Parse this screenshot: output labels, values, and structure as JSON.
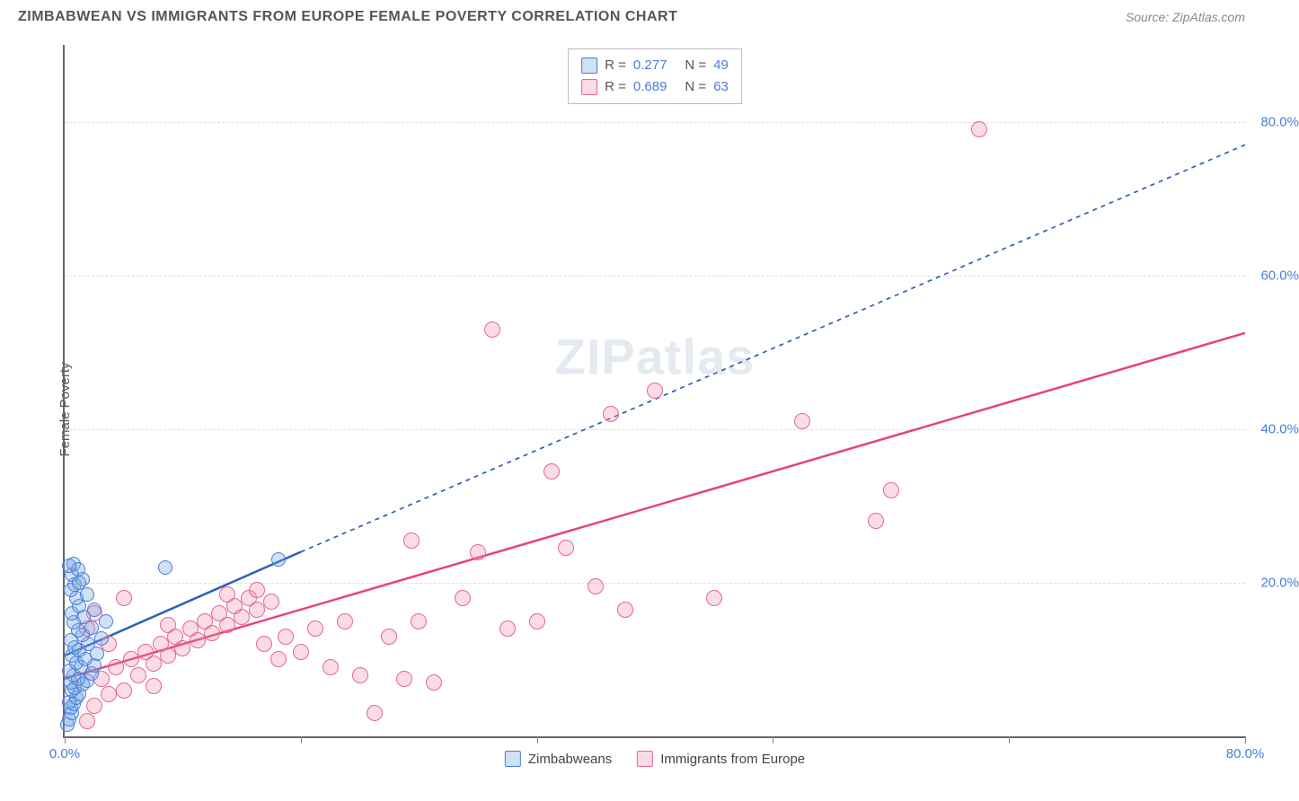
{
  "header": {
    "title": "ZIMBABWEAN VS IMMIGRANTS FROM EUROPE FEMALE POVERTY CORRELATION CHART",
    "source": "Source: ZipAtlas.com"
  },
  "watermark": {
    "bold": "ZIP",
    "light": "atlas"
  },
  "chart": {
    "type": "scatter-with-regression",
    "ylabel": "Female Poverty",
    "xlim": [
      0,
      80
    ],
    "ylim": [
      0,
      90
    ],
    "xtick_positions": [
      0,
      16,
      32,
      48,
      64,
      80
    ],
    "xtick_labels": {
      "0": "0.0%",
      "80": "80.0%"
    },
    "ygrid_positions": [
      20,
      40,
      60,
      80
    ],
    "ytick_labels": {
      "20": "20.0%",
      "40": "40.0%",
      "60": "60.0%",
      "80": "80.0%"
    },
    "background_color": "#ffffff",
    "grid_color": "#dddddd",
    "axis_color": "#666666",
    "tick_label_color": "#4a7dd6",
    "series": {
      "zimbabweans": {
        "label": "Zimbabweans",
        "marker_fill": "rgba(120, 170, 230, 0.35)",
        "marker_stroke": "#4a7dd6",
        "marker_radius": 8,
        "line_color": "#2d5fb8",
        "line_width": 2.5,
        "line_dash_tail": "5,5",
        "R": "0.277",
        "N": "49",
        "regression": {
          "x1": 0,
          "y1": 10.5,
          "x2_solid": 16,
          "y2_solid": 24,
          "x2": 80,
          "y2": 77
        },
        "points": [
          [
            0.2,
            1.5
          ],
          [
            0.3,
            2.2
          ],
          [
            0.5,
            3.0
          ],
          [
            0.4,
            3.8
          ],
          [
            0.6,
            4.2
          ],
          [
            0.3,
            4.5
          ],
          [
            0.8,
            5.0
          ],
          [
            1.0,
            5.5
          ],
          [
            0.5,
            6.0
          ],
          [
            0.7,
            6.3
          ],
          [
            1.2,
            6.8
          ],
          [
            0.4,
            7.0
          ],
          [
            1.5,
            7.2
          ],
          [
            0.9,
            7.5
          ],
          [
            0.6,
            8.0
          ],
          [
            1.8,
            8.2
          ],
          [
            0.3,
            8.5
          ],
          [
            1.1,
            9.0
          ],
          [
            2.0,
            9.2
          ],
          [
            0.8,
            9.6
          ],
          [
            1.4,
            10.0
          ],
          [
            0.5,
            10.5
          ],
          [
            2.2,
            10.8
          ],
          [
            1.0,
            11.2
          ],
          [
            0.7,
            11.6
          ],
          [
            1.6,
            12.0
          ],
          [
            0.4,
            12.5
          ],
          [
            2.5,
            12.8
          ],
          [
            1.2,
            13.2
          ],
          [
            0.9,
            13.8
          ],
          [
            1.8,
            14.2
          ],
          [
            0.6,
            14.8
          ],
          [
            2.8,
            15.0
          ],
          [
            1.3,
            15.5
          ],
          [
            0.5,
            16.0
          ],
          [
            2.0,
            16.5
          ],
          [
            1.0,
            17.0
          ],
          [
            0.8,
            18.0
          ],
          [
            1.5,
            18.5
          ],
          [
            0.4,
            19.0
          ],
          [
            0.7,
            19.8
          ],
          [
            1.2,
            20.5
          ],
          [
            0.5,
            21.0
          ],
          [
            6.8,
            22.0
          ],
          [
            0.6,
            22.5
          ],
          [
            0.9,
            21.8
          ],
          [
            1.0,
            20.0
          ],
          [
            14.5,
            23.0
          ],
          [
            0.3,
            22.2
          ]
        ]
      },
      "europe": {
        "label": "Immigrants from Europe",
        "marker_fill": "rgba(240, 140, 170, 0.30)",
        "marker_stroke": "#e8668f",
        "marker_radius": 9,
        "line_color": "#e8446f",
        "line_width": 2.5,
        "R": "0.689",
        "N": "63",
        "regression": {
          "x1": 0,
          "y1": 7.5,
          "x2": 80,
          "y2": 52.5
        },
        "points": [
          [
            1.5,
            2.0
          ],
          [
            2.0,
            4.0
          ],
          [
            3.0,
            5.5
          ],
          [
            4.0,
            6.0
          ],
          [
            2.5,
            7.5
          ],
          [
            5.0,
            8.0
          ],
          [
            3.5,
            9.0
          ],
          [
            6.0,
            9.5
          ],
          [
            4.5,
            10.0
          ],
          [
            7.0,
            10.5
          ],
          [
            5.5,
            11.0
          ],
          [
            8.0,
            11.5
          ],
          [
            6.5,
            12.0
          ],
          [
            9.0,
            12.5
          ],
          [
            7.5,
            13.0
          ],
          [
            10.0,
            13.5
          ],
          [
            8.5,
            14.0
          ],
          [
            11.0,
            14.5
          ],
          [
            9.5,
            15.0
          ],
          [
            12.0,
            15.5
          ],
          [
            10.5,
            16.0
          ],
          [
            13.0,
            16.5
          ],
          [
            11.5,
            17.0
          ],
          [
            14.0,
            17.5
          ],
          [
            12.5,
            18.0
          ],
          [
            15.0,
            13.0
          ],
          [
            13.5,
            12.0
          ],
          [
            16.0,
            11.0
          ],
          [
            14.5,
            10.0
          ],
          [
            17.0,
            14.0
          ],
          [
            18.0,
            9.0
          ],
          [
            19.0,
            15.0
          ],
          [
            20.0,
            8.0
          ],
          [
            21.0,
            3.0
          ],
          [
            22.0,
            13.0
          ],
          [
            23.0,
            7.5
          ],
          [
            24.0,
            15.0
          ],
          [
            25.0,
            7.0
          ],
          [
            27.0,
            18.0
          ],
          [
            23.5,
            25.5
          ],
          [
            28.0,
            24.0
          ],
          [
            29.0,
            53.0
          ],
          [
            30.0,
            14.0
          ],
          [
            32.0,
            15.0
          ],
          [
            33.0,
            34.5
          ],
          [
            34.0,
            24.5
          ],
          [
            36.0,
            19.5
          ],
          [
            37.0,
            42.0
          ],
          [
            38.0,
            16.5
          ],
          [
            40.0,
            45.0
          ],
          [
            44.0,
            18.0
          ],
          [
            50.0,
            41.0
          ],
          [
            55.0,
            28.0
          ],
          [
            56.0,
            32.0
          ],
          [
            62.0,
            79.0
          ],
          [
            13.0,
            19.0
          ],
          [
            6.0,
            6.5
          ],
          [
            7.0,
            14.5
          ],
          [
            11.0,
            18.5
          ],
          [
            3.0,
            12.0
          ],
          [
            2.0,
            16.0
          ],
          [
            4.0,
            18.0
          ],
          [
            1.5,
            14.0
          ]
        ]
      }
    },
    "top_legend_rows": [
      {
        "swatch_fill": "rgba(120,170,230,0.35)",
        "swatch_stroke": "#4a7dd6",
        "r_key": "series.zimbabweans.R",
        "n_key": "series.zimbabweans.N"
      },
      {
        "swatch_fill": "rgba(240,140,170,0.30)",
        "swatch_stroke": "#e8668f",
        "r_key": "series.europe.R",
        "n_key": "series.europe.N"
      }
    ]
  },
  "labels": {
    "r_eq": "R =",
    "n_eq": "N ="
  }
}
